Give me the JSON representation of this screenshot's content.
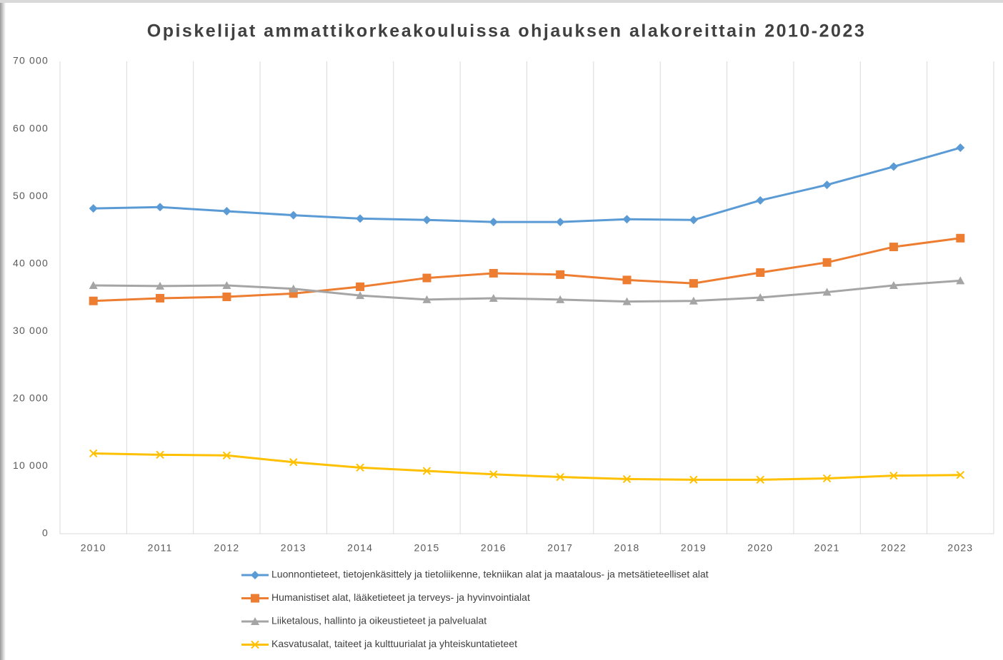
{
  "chart_data": {
    "type": "line",
    "title": "Opiskelijat ammattikorkeakouluissa ohjauksen alakoreittain 2010-2023",
    "categories": [
      "2010",
      "2011",
      "2012",
      "2013",
      "2014",
      "2015",
      "2016",
      "2017",
      "2018",
      "2019",
      "2020",
      "2021",
      "2022",
      "2023"
    ],
    "series": [
      {
        "name": "Luonnontieteet, tietojenkäsittely ja tietoliikenne, tekniikan alat ja maatalous- ja metsätieteelliset alat",
        "color": "#5b9bd5",
        "marker": "diamond",
        "values": [
          48200,
          48400,
          47800,
          47200,
          46700,
          46500,
          46200,
          46200,
          46600,
          46500,
          49400,
          51700,
          54400,
          57200
        ]
      },
      {
        "name": "Humanistiset alat, lääketieteet ja terveys- ja hyvinvointialat",
        "color": "#ed7d31",
        "marker": "square",
        "values": [
          34500,
          34900,
          35100,
          35600,
          36600,
          37900,
          38600,
          38400,
          37600,
          37100,
          38700,
          40200,
          42500,
          43800
        ]
      },
      {
        "name": "Liiketalous, hallinto ja oikeustieteet ja palvelualat",
        "color": "#a5a5a5",
        "marker": "triangle",
        "values": [
          36800,
          36700,
          36800,
          36300,
          35300,
          34700,
          34900,
          34700,
          34400,
          34500,
          35000,
          35800,
          36800,
          37500
        ]
      },
      {
        "name": "Kasvatusalat, taiteet ja kulttuurialat ja yhteiskuntatieteet",
        "color": "#ffc000",
        "marker": "x",
        "values": [
          11900,
          11700,
          11600,
          10600,
          9800,
          9300,
          8800,
          8400,
          8100,
          8000,
          8000,
          8200,
          8600,
          8700
        ]
      }
    ],
    "ylim": [
      0,
      70000
    ],
    "yticks": [
      0,
      {
        "value": 10000,
        "label": "10 000"
      },
      {
        "value": 20000,
        "label": "20 000"
      },
      {
        "value": 30000,
        "label": "30 000"
      },
      {
        "value": 40000,
        "label": "40 000"
      },
      {
        "value": 50000,
        "label": "50 000"
      },
      {
        "value": 60000,
        "label": "60 000"
      },
      {
        "value": 70000,
        "label": "70 000"
      }
    ],
    "grid": "vertical",
    "legend": "bottom"
  }
}
